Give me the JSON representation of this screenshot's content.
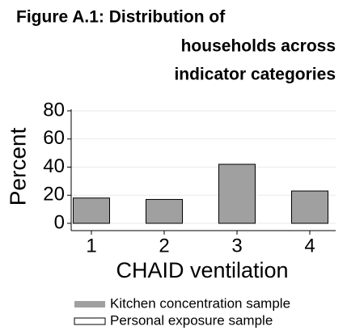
{
  "chart_data": {
    "type": "bar",
    "title": [
      "Figure A.1: Distribution of",
      "households across",
      "indicator categories"
    ],
    "x_label": "CHAID ventilation",
    "y_label": "Percent",
    "categories": [
      "1",
      "2",
      "3",
      "4"
    ],
    "series": [
      {
        "name": "Kitchen concentration sample",
        "color": "#a0a0a0",
        "values": [
          18,
          17,
          42,
          23
        ]
      },
      {
        "name": "Personal exposure sample",
        "color": "#ffffff",
        "values": [
          18,
          17,
          42,
          23
        ]
      }
    ],
    "ylim": [
      0,
      80
    ],
    "yticks": [
      0,
      20,
      40,
      60,
      80
    ],
    "grid": true
  }
}
